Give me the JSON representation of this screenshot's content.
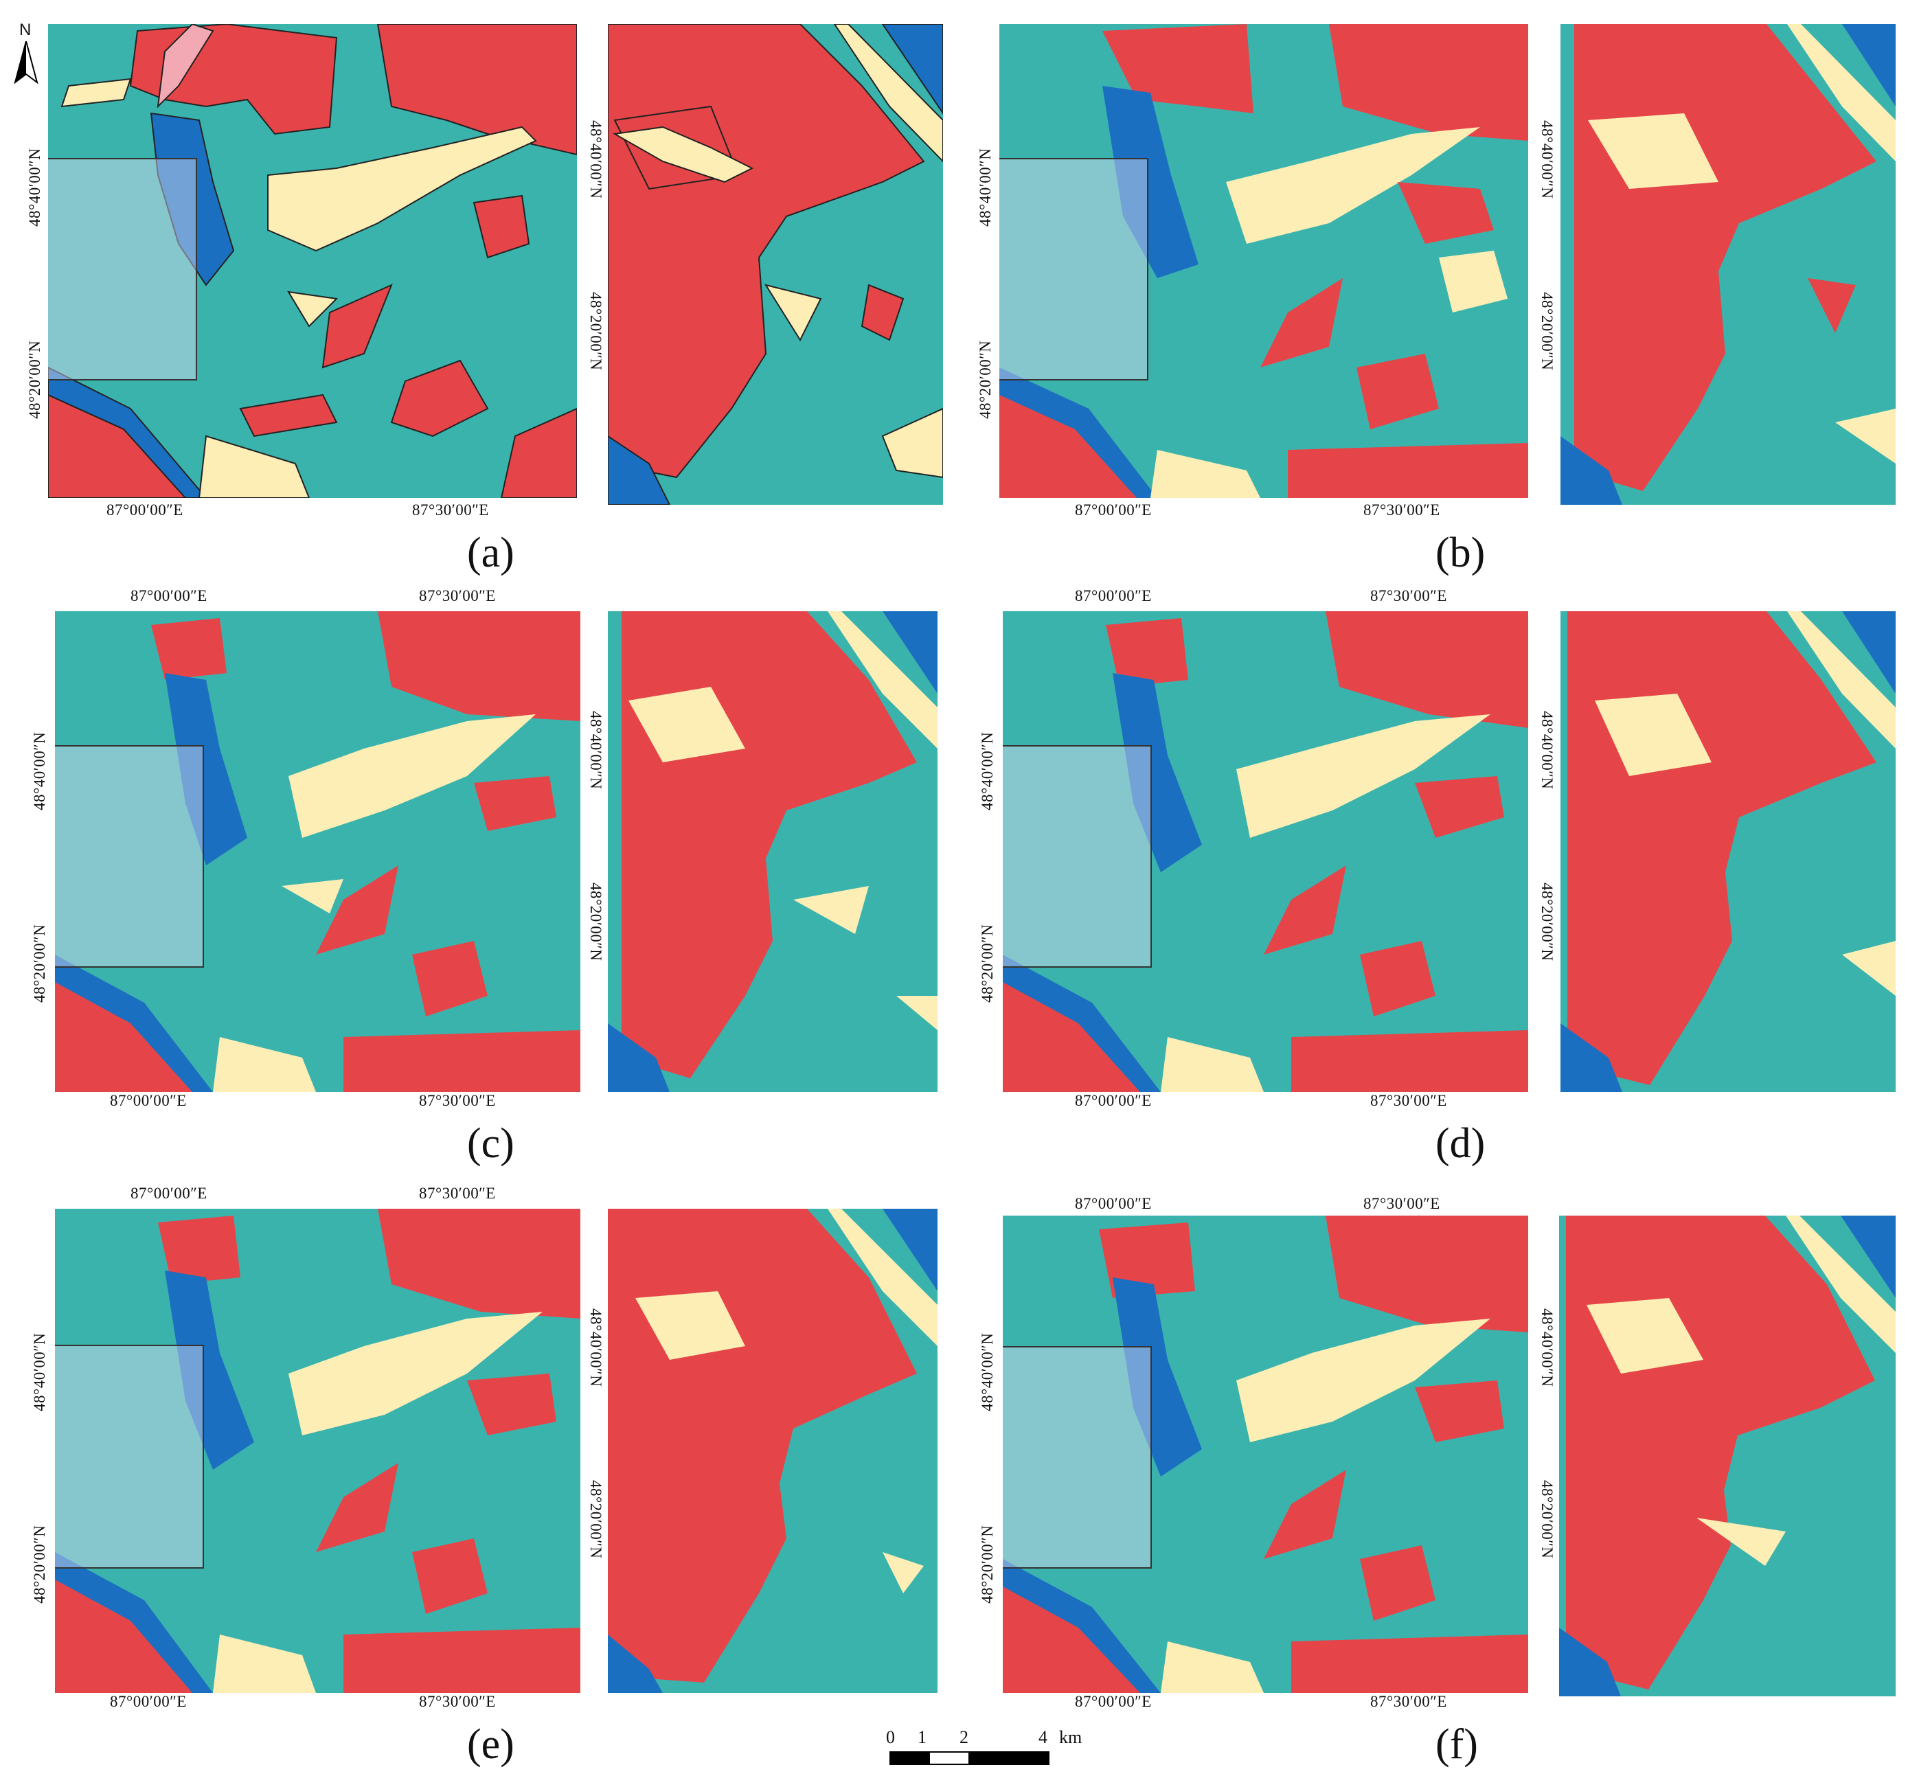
{
  "colors": {
    "red": "#e54548",
    "teal": "#3bb3ad",
    "blue": "#1b6fc0",
    "cream": "#fdeeb6",
    "pink": "#f3a9b4",
    "inset_fill": "#e1e1f5"
  },
  "north_arrow": {
    "label": "N"
  },
  "ticks": {
    "lon1": "87°00′00″E",
    "lon2": "87°30′00″E",
    "lat1": "48°40′00″N",
    "lat2": "48°20′00″N"
  },
  "panels": [
    {
      "id": "a",
      "label": "(a)"
    },
    {
      "id": "b",
      "label": "(b)"
    },
    {
      "id": "c",
      "label": "(c)"
    },
    {
      "id": "d",
      "label": "(d)"
    },
    {
      "id": "e",
      "label": "(e)"
    },
    {
      "id": "f",
      "label": "(f)"
    }
  ],
  "scale_bar": {
    "ticks": [
      "0",
      "1",
      "2",
      "4"
    ],
    "unit": "km"
  }
}
